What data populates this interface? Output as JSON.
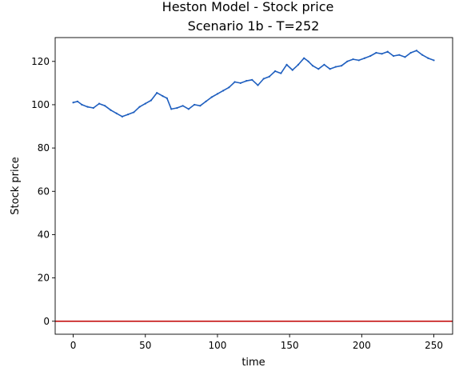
{
  "chart_data": {
    "type": "line",
    "title": "Heston Model - Stock price",
    "subtitle": "Scenario 1b - T=252",
    "xlabel": "time",
    "ylabel": "Stock price",
    "xlim": [
      -12.5,
      263
    ],
    "ylim": [
      -6,
      131
    ],
    "xticks": [
      0,
      50,
      100,
      150,
      200,
      250
    ],
    "yticks": [
      0,
      20,
      40,
      60,
      80,
      100,
      120
    ],
    "grid": false,
    "series_color": "#1f5fbf",
    "reference_line": {
      "y": 0,
      "color": "#c00000"
    },
    "x": [
      0,
      3,
      6,
      10,
      14,
      18,
      22,
      26,
      30,
      34,
      38,
      42,
      46,
      50,
      54,
      58,
      62,
      65,
      68,
      72,
      76,
      80,
      84,
      88,
      92,
      96,
      100,
      104,
      108,
      112,
      116,
      120,
      124,
      128,
      132,
      136,
      140,
      144,
      148,
      152,
      156,
      160,
      163,
      166,
      170,
      174,
      178,
      182,
      186,
      190,
      194,
      198,
      202,
      206,
      210,
      214,
      218,
      222,
      226,
      230,
      234,
      238,
      242,
      246,
      250
    ],
    "values": [
      101,
      101.5,
      100,
      99,
      98.5,
      100.5,
      99.5,
      97.5,
      96,
      94.5,
      95.5,
      96.5,
      99,
      100.5,
      102,
      105.5,
      104,
      103,
      98,
      98.5,
      99.5,
      98,
      100,
      99.5,
      101.5,
      103.5,
      105,
      106.5,
      108,
      110.5,
      110,
      111,
      111.5,
      109,
      112,
      113,
      115.5,
      114.5,
      118.5,
      116,
      118.5,
      121.5,
      120,
      118,
      116.5,
      118.5,
      116.5,
      117.5,
      118,
      120,
      121,
      120.5,
      121.5,
      122.5,
      124,
      123.5,
      124.5,
      122.5,
      123,
      122,
      124,
      125,
      123,
      121.5,
      120.5
    ]
  }
}
